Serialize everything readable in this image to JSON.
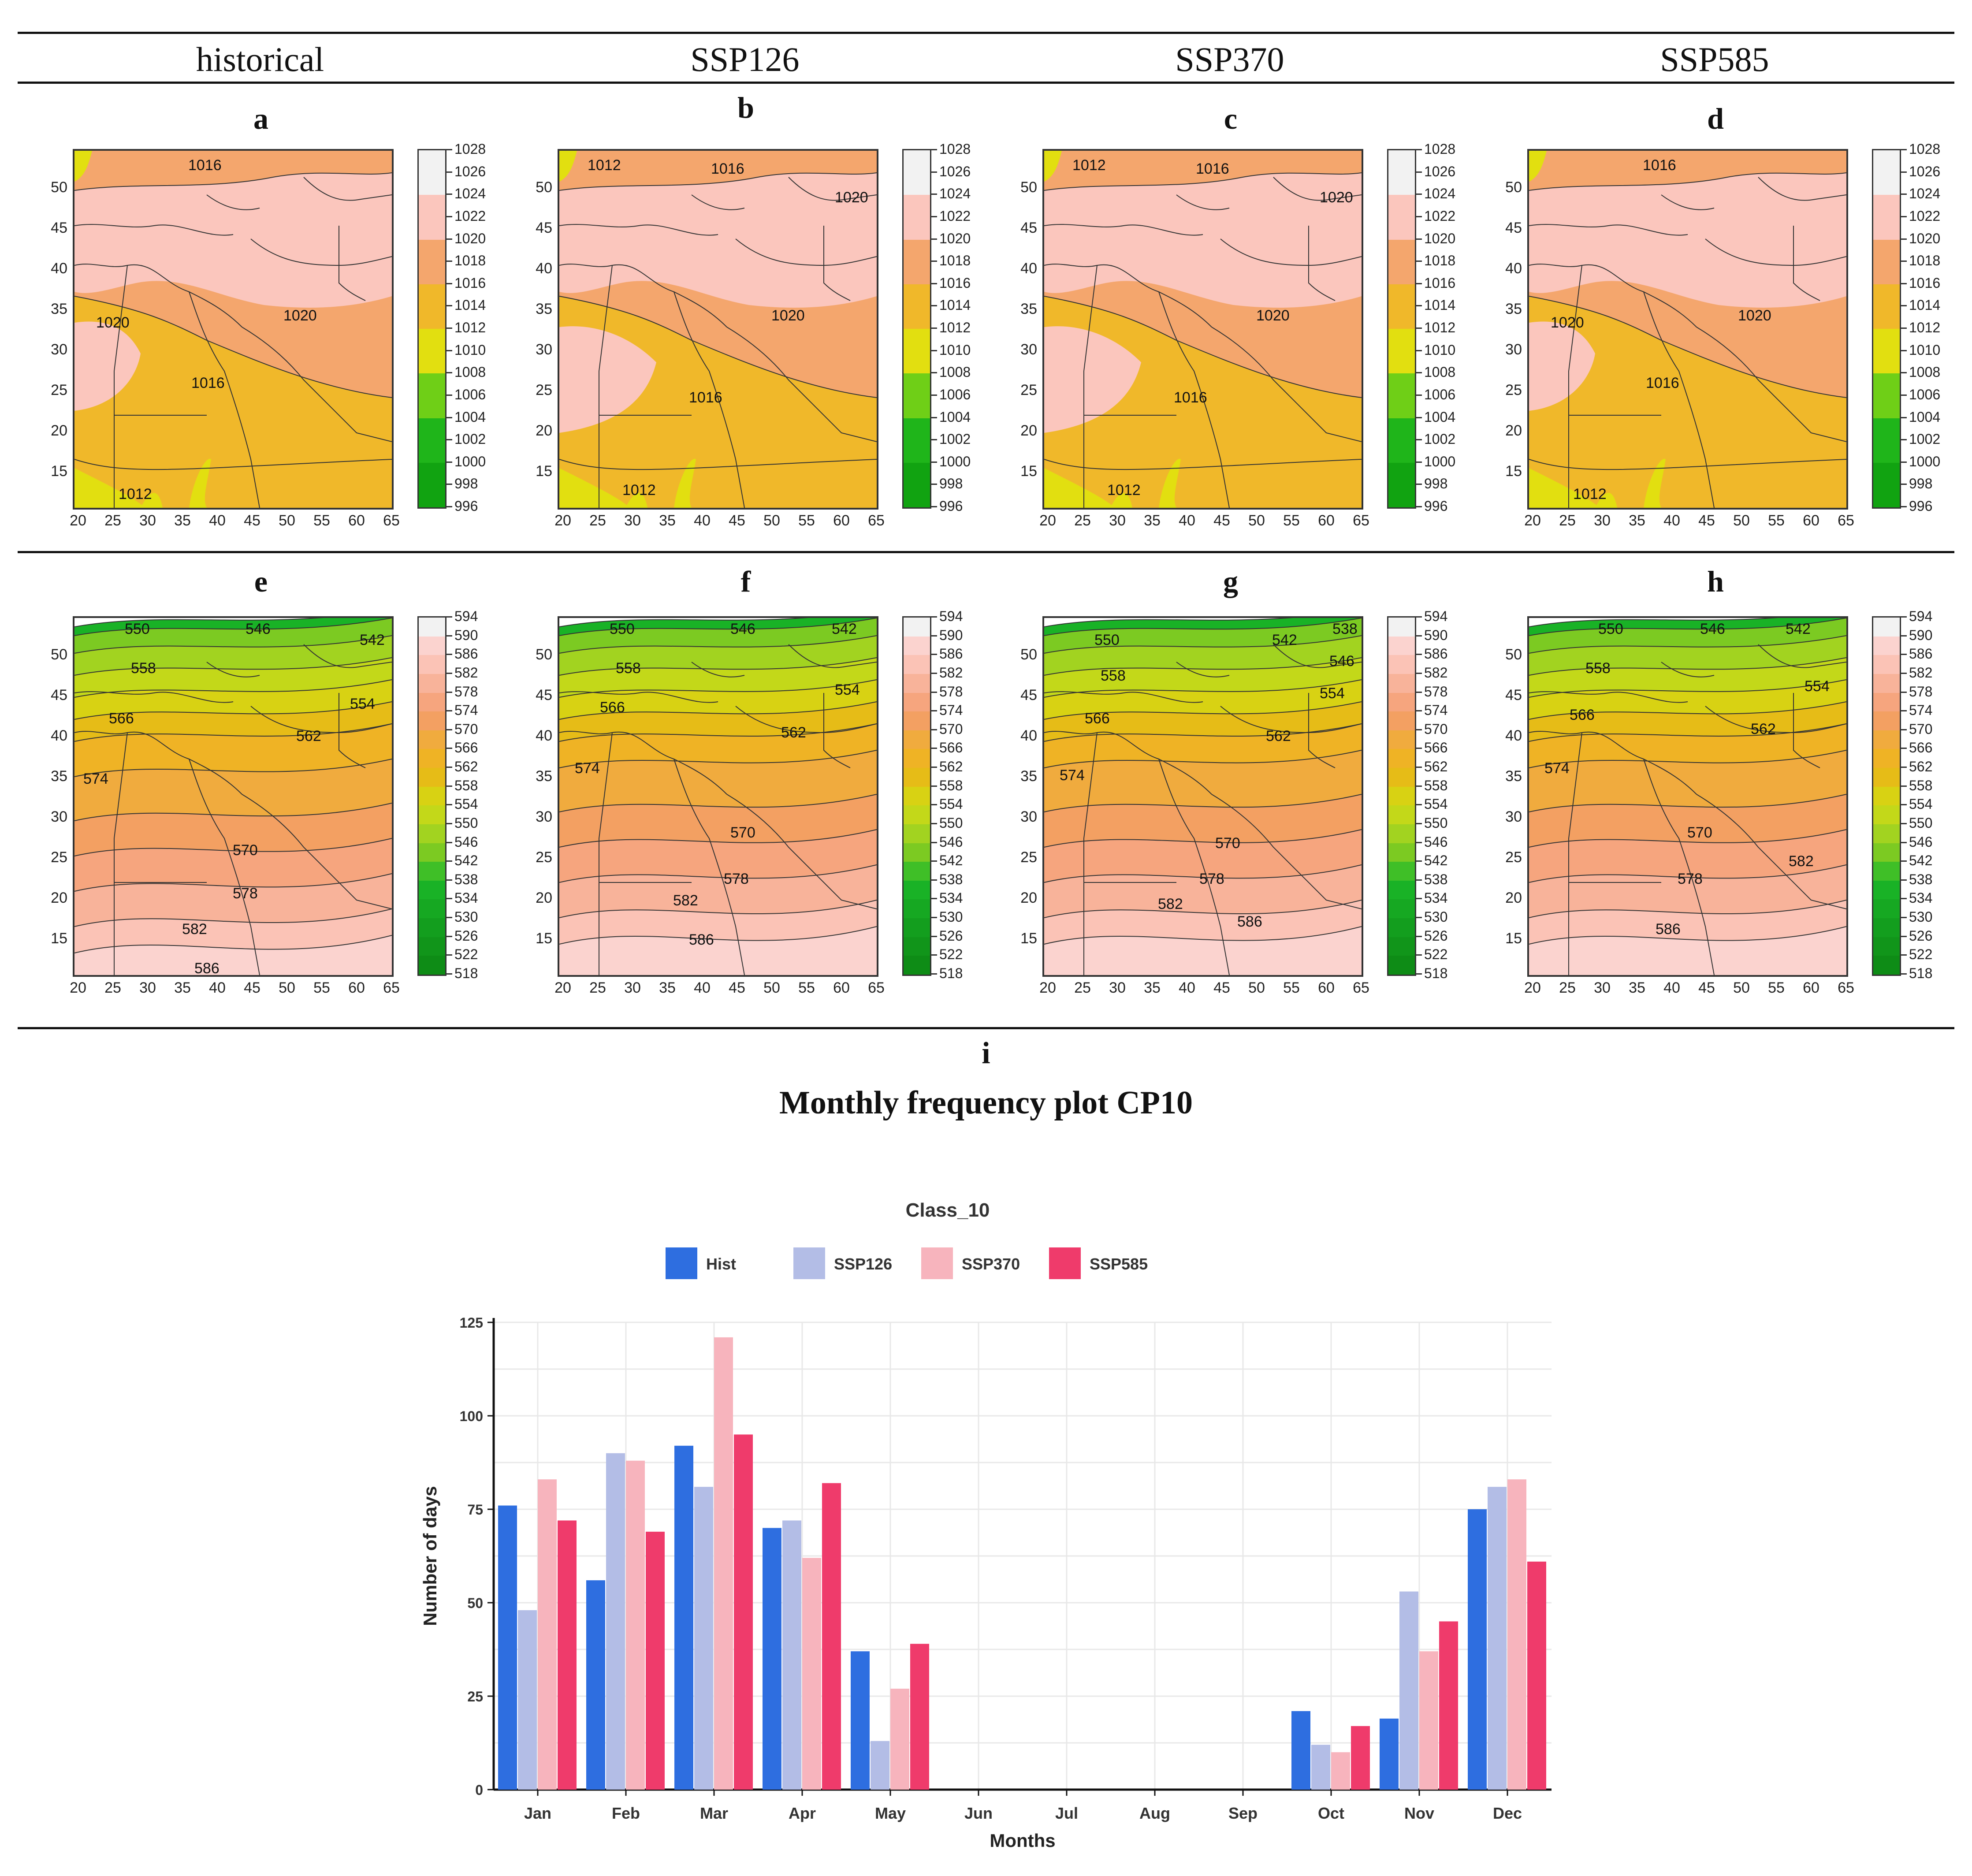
{
  "scenarios": [
    "historical",
    "SSP126",
    "SSP370",
    "SSP585"
  ],
  "row1_labels": [
    "a",
    "b",
    "c",
    "d"
  ],
  "row2_labels": [
    "e",
    "f",
    "g",
    "h"
  ],
  "panel_i_label": "i",
  "panel_i_title": "Monthly frequency plot CP10",
  "map_lat_ticks": [
    "50",
    "45",
    "40",
    "35",
    "30",
    "25",
    "20",
    "15"
  ],
  "map_lon_ticks": [
    "20",
    "25",
    "30",
    "35",
    "40",
    "45",
    "50",
    "55",
    "60",
    "65"
  ],
  "slp_colorbar": {
    "ticks": [
      "1028",
      "1026",
      "1024",
      "1022",
      "1020",
      "1018",
      "1016",
      "1014",
      "1012",
      "1010",
      "1008",
      "1006",
      "1004",
      "1002",
      "1000",
      "998",
      "996"
    ],
    "colors": [
      "#f2f2f2",
      "#f2f2f2",
      "#fbc6bd",
      "#fbc6bd",
      "#f4a66d",
      "#f4a66d",
      "#f0b82a",
      "#f0b82a",
      "#e2df10",
      "#e2df10",
      "#6fcf17",
      "#6fcf17",
      "#1fb51a",
      "#1fb51a",
      "#11a311",
      "#11a311"
    ]
  },
  "z500_colorbar": {
    "ticks": [
      "594",
      "590",
      "586",
      "582",
      "578",
      "574",
      "570",
      "566",
      "562",
      "558",
      "554",
      "550",
      "546",
      "542",
      "538",
      "534",
      "530",
      "526",
      "522",
      "518"
    ],
    "colors": [
      "#f2f2f2",
      "#fbd3cf",
      "#fbc3b6",
      "#f8b39a",
      "#f6a57e",
      "#f3a062",
      "#f0ab3e",
      "#efb325",
      "#e6bc17",
      "#d8d213",
      "#c3d819",
      "#a2d320",
      "#7cca22",
      "#3fbf27",
      "#19b226",
      "#16a822",
      "#139e1e",
      "#11951a",
      "#0e8c16"
    ]
  },
  "slp_contour_labels": [
    [
      "1016",
      "1020",
      "1020",
      "1016",
      "1012"
    ],
    [
      "1012",
      "1016",
      "1020",
      "1020",
      "1016",
      "1012"
    ],
    [
      "1012",
      "1016",
      "1020",
      "1020",
      "1016",
      "1012"
    ],
    [
      "1016",
      "1020",
      "1020",
      "1016",
      "1012"
    ]
  ],
  "z500_contour_labels": [
    [
      "550",
      "546",
      "542",
      "558",
      "554",
      "566",
      "562",
      "574",
      "570",
      "578",
      "582",
      "586"
    ],
    [
      "550",
      "546",
      "542",
      "558",
      "554",
      "566",
      "562",
      "574",
      "570",
      "578",
      "582",
      "586"
    ],
    [
      "550",
      "542",
      "538",
      "546",
      "558",
      "554",
      "566",
      "562",
      "574",
      "570",
      "578",
      "582",
      "586"
    ],
    [
      "550",
      "546",
      "542",
      "558",
      "554",
      "566",
      "562",
      "574",
      "570",
      "582",
      "578",
      "586"
    ]
  ],
  "chart_data": {
    "type": "bar",
    "title": "Class_10",
    "xlabel": "Months",
    "ylabel": "Number of days",
    "categories": [
      "Jan",
      "Feb",
      "Mar",
      "Apr",
      "May",
      "Jun",
      "Jul",
      "Aug",
      "Sep",
      "Oct",
      "Nov",
      "Dec"
    ],
    "yticks": [
      0,
      25,
      50,
      75,
      100,
      125
    ],
    "ylim": [
      0,
      125
    ],
    "grid": true,
    "legend_position": "top",
    "series": [
      {
        "name": "Hist",
        "color": "#2e6ee0",
        "values": [
          76,
          56,
          92,
          70,
          37,
          0,
          0,
          0,
          0,
          21,
          19,
          75
        ]
      },
      {
        "name": "SSP126",
        "color": "#b3bde6",
        "values": [
          48,
          90,
          81,
          72,
          13,
          0,
          0,
          0,
          0,
          12,
          53,
          81
        ]
      },
      {
        "name": "SSP370",
        "color": "#f7b4bd",
        "values": [
          83,
          88,
          121,
          62,
          27,
          0,
          0,
          0,
          0,
          10,
          37,
          83
        ]
      },
      {
        "name": "SSP585",
        "color": "#ef3b6b",
        "values": [
          72,
          69,
          95,
          82,
          39,
          0,
          0,
          0,
          0,
          17,
          45,
          61
        ]
      }
    ]
  }
}
